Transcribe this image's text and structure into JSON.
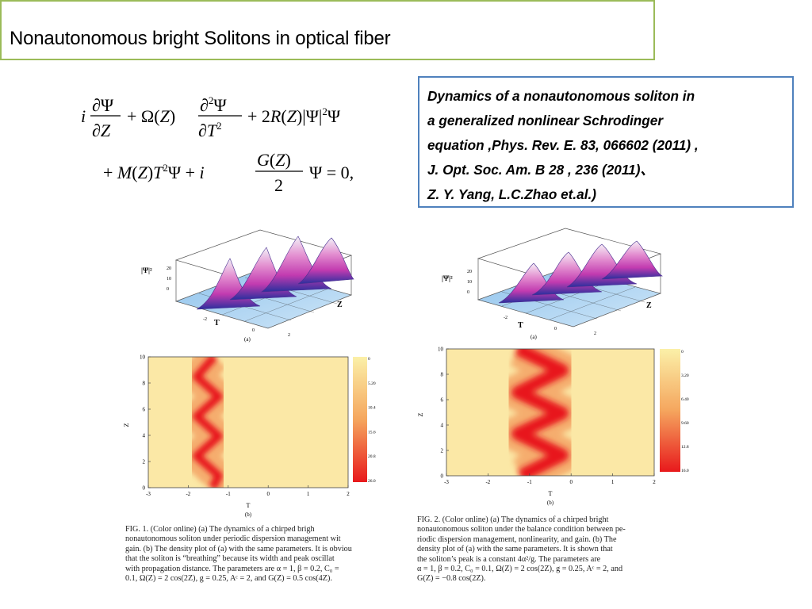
{
  "slide": {
    "title": "Nonautonomous bright  Solitons in optical fiber"
  },
  "reference": {
    "lines": [
      "Dynamics of a nonautonomous soliton in",
      "a generalized nonlinear Schrodinger",
      "equation ,Phys. Rev. E. 83, 066602 (2011) ,",
      "J. Opt. Soc. Am. B 28 , 236 (2011)、",
      "Z. Y. Yang, L.C.Zhao et.al.)"
    ]
  },
  "equation": {
    "line1": "i ∂Ψ/∂Z + Ω(Z) ∂²Ψ/∂T² + 2R(Z)|Ψ|²Ψ",
    "line2": "+ M(Z)T²Ψ + i G(Z)/2 Ψ = 0,"
  },
  "figure1": {
    "surface_axis": {
      "zlabel": "|Ψ|²",
      "z_ticks": [
        "20",
        "10",
        "0"
      ],
      "xlabel": "T",
      "ylabel": "Z",
      "sublabel": "(a)",
      "t_ticks": [
        "-2",
        "0",
        "2"
      ]
    },
    "density": {
      "sublabel": "(b)",
      "xlabel": "T",
      "ylabel": "Z",
      "x_ticks": [
        "-3",
        "-2",
        "-1",
        "0",
        "1",
        "2"
      ],
      "y_ticks": [
        "0",
        "2",
        "4",
        "6",
        "8",
        "10"
      ],
      "colorbar_ticks": [
        "0",
        "5.20",
        "10.4",
        "15.6",
        "20.8",
        "26.0"
      ]
    },
    "caption": [
      "FIG. 1. (Color online) (a) The dynamics of a chirped brigh",
      "nonautonomous soliton under periodic dispersion management wit",
      "gain. (b) The density plot of (a) with the same parameters. It is obviou",
      "that the soliton is “breathing” because its width and peak oscillat",
      "with propagation distance. The parameters are α = 1, β = 0.2, C₀ =",
      "0.1, Ω(Z) = 2 cos(2Z), g = 0.25, Aᶜ = 2, and G(Z) = 0.5 cos(4Z)."
    ]
  },
  "figure2": {
    "surface_axis": {
      "zlabel": "|Ψ|²",
      "z_ticks": [
        "20",
        "10",
        "0"
      ],
      "xlabel": "T",
      "ylabel": "Z",
      "sublabel": "(a)",
      "t_ticks": [
        "-2",
        "0",
        "2"
      ]
    },
    "density": {
      "sublabel": "(b)",
      "xlabel": "T",
      "ylabel": "Z",
      "x_ticks": [
        "-3",
        "-2",
        "-1",
        "0",
        "1",
        "2"
      ],
      "y_ticks": [
        "0",
        "2",
        "4",
        "6",
        "8",
        "10"
      ],
      "colorbar_ticks": [
        "0",
        "3.20",
        "6.40",
        "9.60",
        "12.8",
        "16.0"
      ]
    },
    "caption": [
      "FIG. 2. (Color online) (a) The dynamics of a chirped bright",
      "nonautonomous soliton under the balance condition between pe-",
      "riodic dispersion management, nonlinearity, and gain. (b) The",
      "density plot of (a) with the same parameters. It is shown that",
      "the soliton’s peak is a constant 4α²/g. The parameters are",
      "α = 1, β = 0.2, C₀ = 0.1, Ω(Z) = 2 cos(2Z), g = 0.25, Aᶜ = 2, and",
      "G(Z) = −0.8 cos(2Z)."
    ]
  },
  "colors": {
    "title_border": "#9bbb59",
    "ref_border": "#4f81bd",
    "density_background": "#fbe8a6",
    "density_peak": "#e8191c"
  }
}
